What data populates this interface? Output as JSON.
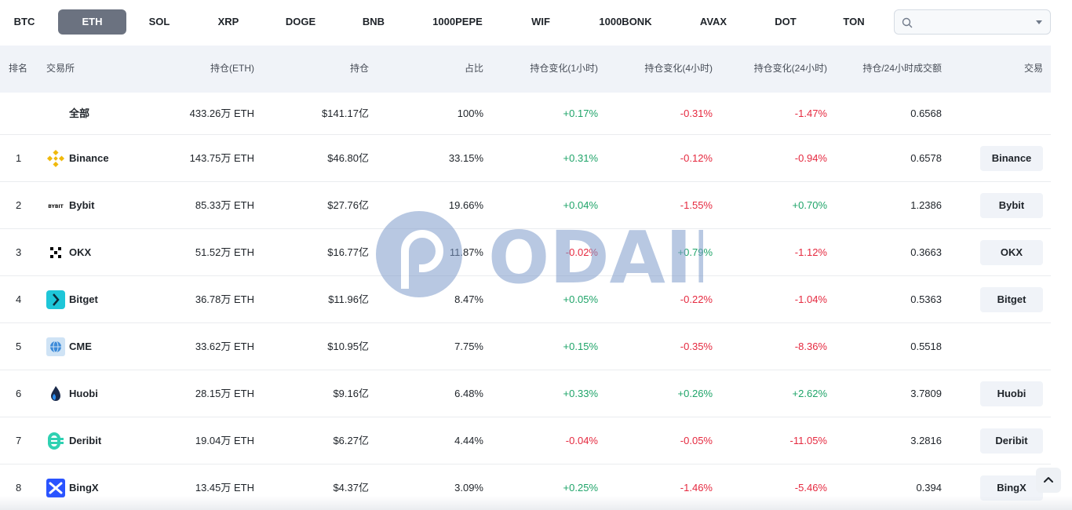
{
  "coins": {
    "tabs": [
      "BTC",
      "ETH",
      "SOL",
      "XRP",
      "DOGE",
      "BNB",
      "1000PEPE",
      "WIF",
      "1000BONK",
      "AVAX",
      "DOT",
      "TON"
    ],
    "active": "ETH"
  },
  "search": {
    "placeholder": "",
    "value": ""
  },
  "table": {
    "headers": {
      "rank": "排名",
      "exchange": "交易所",
      "oi_coin": "持仓(ETH)",
      "oi_usd": "持仓",
      "share": "占比",
      "chg_1h": "持仓变化(1小时)",
      "chg_4h": "持仓变化(4小时)",
      "chg_24h": "持仓变化(24小时)",
      "ratio": "持仓/24小时成交额",
      "trade": "交易"
    },
    "total": {
      "name": "全部",
      "oi_coin": "433.26万 ETH",
      "oi_usd": "$141.17亿",
      "share": "100%",
      "chg_1h": "+0.17%",
      "chg_4h": "-0.31%",
      "chg_24h": "-1.47%",
      "ratio": "0.6568"
    },
    "rows": [
      {
        "rank": "1",
        "name": "Binance",
        "logo": "binance-logo-icon",
        "oi_coin": "143.75万 ETH",
        "oi_usd": "$46.80亿",
        "share": "33.15%",
        "chg_1h": "+0.31%",
        "chg_4h": "-0.12%",
        "chg_24h": "-0.94%",
        "ratio": "0.6578",
        "trade": "Binance"
      },
      {
        "rank": "2",
        "name": "Bybit",
        "logo": "bybit-logo-icon",
        "oi_coin": "85.33万 ETH",
        "oi_usd": "$27.76亿",
        "share": "19.66%",
        "chg_1h": "+0.04%",
        "chg_4h": "-1.55%",
        "chg_24h": "+0.70%",
        "ratio": "1.2386",
        "trade": "Bybit"
      },
      {
        "rank": "3",
        "name": "OKX",
        "logo": "okx-logo-icon",
        "oi_coin": "51.52万 ETH",
        "oi_usd": "$16.77亿",
        "share": "11.87%",
        "chg_1h": "-0.02%",
        "chg_4h": "+0.79%",
        "chg_24h": "-1.12%",
        "ratio": "0.3663",
        "trade": "OKX"
      },
      {
        "rank": "4",
        "name": "Bitget",
        "logo": "bitget-logo-icon",
        "oi_coin": "36.78万 ETH",
        "oi_usd": "$11.96亿",
        "share": "8.47%",
        "chg_1h": "+0.05%",
        "chg_4h": "-0.22%",
        "chg_24h": "-1.04%",
        "ratio": "0.5363",
        "trade": "Bitget"
      },
      {
        "rank": "5",
        "name": "CME",
        "logo": "cme-logo-icon",
        "oi_coin": "33.62万 ETH",
        "oi_usd": "$10.95亿",
        "share": "7.75%",
        "chg_1h": "+0.15%",
        "chg_4h": "-0.35%",
        "chg_24h": "-8.36%",
        "ratio": "0.5518",
        "trade": ""
      },
      {
        "rank": "6",
        "name": "Huobi",
        "logo": "huobi-logo-icon",
        "oi_coin": "28.15万 ETH",
        "oi_usd": "$9.16亿",
        "share": "6.48%",
        "chg_1h": "+0.33%",
        "chg_4h": "+0.26%",
        "chg_24h": "+2.62%",
        "ratio": "3.7809",
        "trade": "Huobi"
      },
      {
        "rank": "7",
        "name": "Deribit",
        "logo": "deribit-logo-icon",
        "oi_coin": "19.04万 ETH",
        "oi_usd": "$6.27亿",
        "share": "4.44%",
        "chg_1h": "-0.04%",
        "chg_4h": "-0.05%",
        "chg_24h": "-11.05%",
        "ratio": "3.2816",
        "trade": "Deribit"
      },
      {
        "rank": "8",
        "name": "BingX",
        "logo": "bingx-logo-icon",
        "oi_coin": "13.45万 ETH",
        "oi_usd": "$4.37亿",
        "share": "3.09%",
        "chg_1h": "+0.25%",
        "chg_4h": "-1.46%",
        "chg_24h": "-5.46%",
        "ratio": "0.394",
        "trade": "BingX"
      }
    ]
  },
  "watermark": {
    "text": "ODAILY"
  },
  "colors": {
    "positive": "#1fa469",
    "negative": "#e5293f",
    "active_tab": "#6b7280",
    "header_bg": "#f0f3f8"
  }
}
